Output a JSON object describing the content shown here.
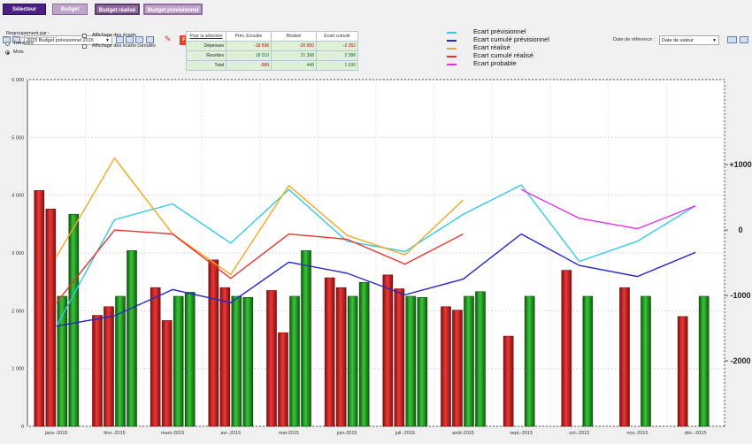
{
  "tabs": {
    "selecteur": "Sélecteur",
    "budget": "Budget",
    "budget_realise": "Budget réalisé",
    "budget_previsionnel": "Budget prévisionnel"
  },
  "toolbar": {
    "budget_select": "2015 Budget prévisionnel 2015",
    "filtre": "Filtre actif",
    "date_ref_label": "Date de référence :",
    "date_ref_value": "Date de valeur"
  },
  "regroupement": {
    "title": "Regroupement par :",
    "options": [
      "Trimestre",
      "Mois"
    ],
    "selected": "Mois"
  },
  "checkboxes": [
    "Affichage des écarts",
    "Affichage des écarts cumulés"
  ],
  "summary": {
    "headers": [
      "Pour la sélection",
      "Prév. Écoulée",
      "Réalisé",
      "Ecart cumulé"
    ],
    "rows": [
      {
        "label": "Dépenses",
        "prev": "-18 598",
        "real": "-20 950",
        "ecart": "-2 352"
      },
      {
        "label": "Recettes",
        "prev": "18 010",
        "real": "21 398",
        "ecart": "3 388"
      },
      {
        "label": "Total",
        "prev": "-589",
        "real": "448",
        "ecart": "1 036"
      }
    ]
  },
  "legend": [
    {
      "name": "Ecart prévisionnel",
      "color": "#33c9e8"
    },
    {
      "name": "Ecart cumulé prévisionnel",
      "color": "#2828c8"
    },
    {
      "name": "Ecart réalisé",
      "color": "#f5a623"
    },
    {
      "name": "Ecart cumulé réalisé",
      "color": "#e8322a"
    },
    {
      "name": "Ecart probable",
      "color": "#e832e8"
    }
  ],
  "chart_data": {
    "type": "bar",
    "categories": [
      "janv.-2015",
      "févr.-2015",
      "mars-2015",
      "avr.-2015",
      "mai-2015",
      "juin-2015",
      "juil.-2015",
      "août-2015",
      "sept.-2015",
      "oct.-2015",
      "nov.-2015",
      "déc.-2015"
    ],
    "ylim": [
      0,
      6000
    ],
    "y2lim": [
      -3000,
      2300
    ],
    "yticks": [
      "0",
      "1 000",
      "2 000",
      "3 000",
      "4 000",
      "5 000",
      "6 000"
    ],
    "y2ticks": [
      "+1000",
      "0",
      "-1000",
      "-2000"
    ],
    "bar_series": [
      {
        "color": "red",
        "values": [
          4080,
          1920,
          2400,
          2880,
          2350,
          2570,
          2620,
          2070,
          1560,
          2700,
          2400,
          1900
        ]
      },
      {
        "color": "red",
        "values": [
          3760,
          2070,
          1830,
          2400,
          1620,
          2400,
          2380,
          2010,
          null,
          null,
          null,
          null
        ]
      },
      {
        "color": "green",
        "values": [
          2250,
          2250,
          2250,
          2250,
          2250,
          2250,
          2250,
          2250,
          2250,
          2250,
          2250,
          2250
        ]
      },
      {
        "color": "green",
        "values": [
          3670,
          3040,
          2320,
          2230,
          3040,
          2490,
          2230,
          2330,
          null,
          null,
          null,
          null
        ]
      }
    ],
    "line_series": [
      {
        "name": "Ecart prévisionnel",
        "color": "#33c9e8",
        "values": [
          -1470,
          160,
          400,
          -200,
          620,
          -170,
          -330,
          240,
          690,
          -480,
          -170,
          370
        ]
      },
      {
        "name": "Ecart cumulé prévisionnel",
        "color": "#2828c8",
        "values": [
          -1470,
          -1310,
          -910,
          -1110,
          -490,
          -660,
          -990,
          -750,
          -60,
          -540,
          -710,
          -340
        ]
      },
      {
        "name": "Ecart réalisé",
        "color": "#f5a623",
        "values": [
          -410,
          1100,
          -60,
          -680,
          680,
          -80,
          -380,
          460,
          null,
          null,
          null,
          null
        ]
      },
      {
        "name": "Ecart cumulé réalisé",
        "color": "#e8322a",
        "values": [
          -1110,
          0,
          -60,
          -740,
          -60,
          -140,
          -520,
          -60,
          null,
          null,
          null,
          null
        ]
      },
      {
        "name": "Ecart probable",
        "color": "#e832e8",
        "values": [
          null,
          null,
          null,
          null,
          null,
          null,
          null,
          null,
          620,
          180,
          20,
          370
        ]
      }
    ]
  }
}
